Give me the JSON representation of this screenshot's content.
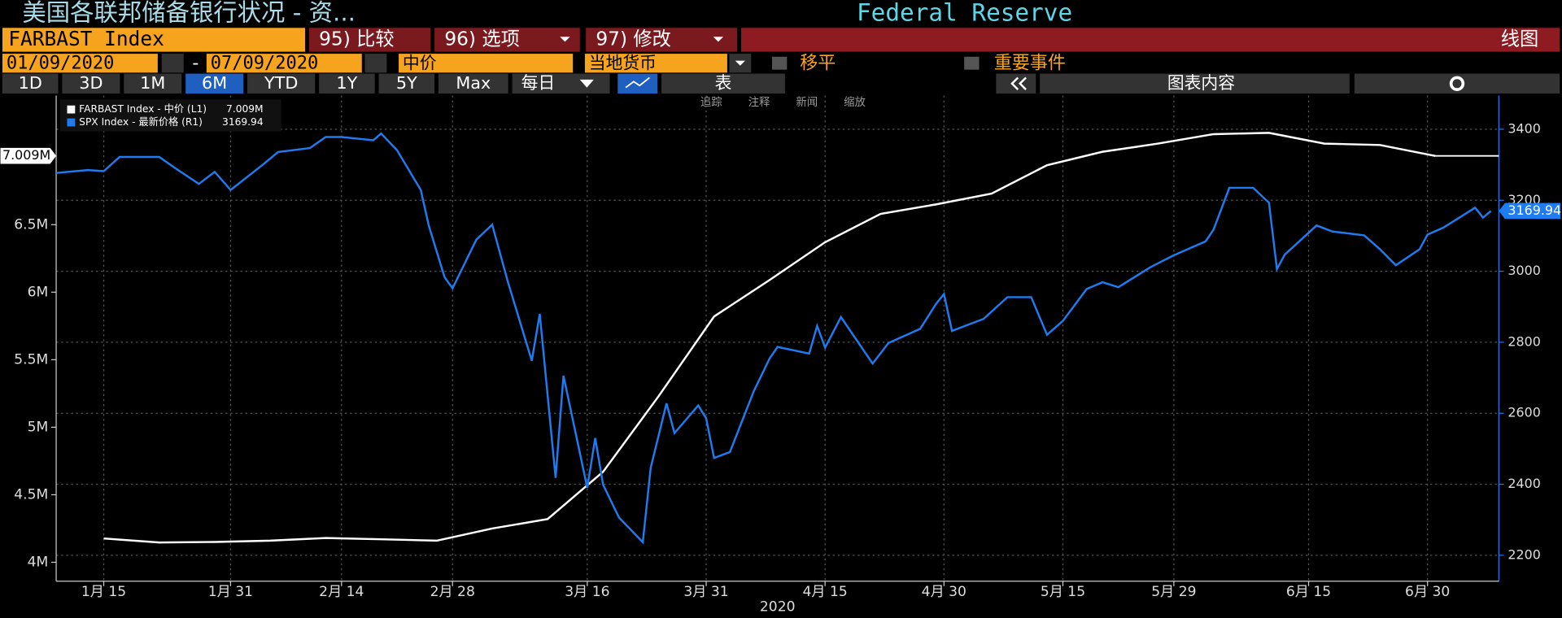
{
  "ui": {
    "title": "美国各联邦储备银行状况 - 资...",
    "source": "Federal Reserve",
    "ticker": "FARBAST Index",
    "compare": "95) 比较",
    "options": "96) 选项",
    "modify": "97) 修改",
    "chart_kind": "线图",
    "start_date": "01/09/2020",
    "date_sep": "-",
    "end_date": "07/09/2020",
    "price_type": "中价",
    "currency": "当地货币",
    "smooth": "移平",
    "events": "重要事件",
    "ranges": [
      "1D",
      "3D",
      "1M",
      "6M",
      "YTD",
      "1Y",
      "5Y",
      "Max"
    ],
    "frequency": "每日",
    "table": "表",
    "chart_content": "图表内容",
    "tools": [
      "追踪",
      "注释",
      "新闻",
      "缩放"
    ]
  },
  "chart_data": {
    "type": "line",
    "xlabel": "2020",
    "xlim": [
      "2020-01-09",
      "2020-07-09"
    ],
    "xticks": [
      {
        "value": "2020-01-15",
        "label": "1月 15"
      },
      {
        "value": "2020-01-31",
        "label": "1月 31"
      },
      {
        "value": "2020-02-14",
        "label": "2月 14"
      },
      {
        "value": "2020-02-28",
        "label": "2月 28"
      },
      {
        "value": "2020-03-16",
        "label": "3月 16"
      },
      {
        "value": "2020-03-31",
        "label": "3月 31"
      },
      {
        "value": "2020-04-15",
        "label": "4月 15"
      },
      {
        "value": "2020-04-30",
        "label": "4月 30"
      },
      {
        "value": "2020-05-15",
        "label": "5月 15"
      },
      {
        "value": "2020-05-29",
        "label": "5月 29"
      },
      {
        "value": "2020-06-15",
        "label": "6月 15"
      },
      {
        "value": "2020-06-30",
        "label": "6月 30"
      }
    ],
    "ylim": [
      3.86,
      7.456
    ],
    "yticks": [
      {
        "value": 4,
        "label": "4M"
      },
      {
        "value": 4.5,
        "label": "4.5M"
      },
      {
        "value": 5,
        "label": "5M"
      },
      {
        "value": 5.5,
        "label": "5.5M"
      },
      {
        "value": 6,
        "label": "6M"
      },
      {
        "value": 6.5,
        "label": "6.5M"
      }
    ],
    "y2lim": [
      2127,
      3495
    ],
    "y2ticks": [
      2200,
      2400,
      2600,
      2800,
      3000,
      3200,
      3400
    ],
    "grid": true,
    "series": [
      {
        "name": "FARBAST Index - 中价 (L1)",
        "color": "#ffffff",
        "axis": "y",
        "x": [
          "2020-01-15",
          "2020-01-22",
          "2020-01-29",
          "2020-02-05",
          "2020-02-12",
          "2020-02-19",
          "2020-02-26",
          "2020-03-04",
          "2020-03-11",
          "2020-03-18",
          "2020-03-25",
          "2020-04-01",
          "2020-04-08",
          "2020-04-15",
          "2020-04-22",
          "2020-04-29",
          "2020-05-06",
          "2020-05-13",
          "2020-05-20",
          "2020-05-27",
          "2020-06-03",
          "2020-06-10",
          "2020-06-17",
          "2020-06-24",
          "2020-07-01"
        ],
        "values": [
          4.176,
          4.147,
          4.15,
          4.16,
          4.18,
          4.17,
          4.16,
          4.25,
          4.32,
          4.67,
          5.23,
          5.82,
          6.09,
          6.37,
          6.58,
          6.65,
          6.73,
          6.94,
          7.04,
          7.1,
          7.17,
          7.18,
          7.1,
          7.09,
          7.009
        ],
        "value_labels": [
          null,
          null,
          null,
          null,
          null,
          null,
          null,
          null,
          null,
          null,
          null,
          null,
          null,
          null,
          null,
          null,
          null,
          null,
          null,
          null,
          null,
          null,
          null,
          null,
          "7.009M"
        ]
      },
      {
        "name": "SPX Index - 最新价格 (R1)",
        "color": "#1e7bf0",
        "axis": "y2",
        "x": [
          "2020-01-09",
          "2020-01-13",
          "2020-01-15",
          "2020-01-17",
          "2020-01-22",
          "2020-01-24",
          "2020-01-27",
          "2020-01-29",
          "2020-01-31",
          "2020-02-04",
          "2020-02-06",
          "2020-02-10",
          "2020-02-12",
          "2020-02-14",
          "2020-02-18",
          "2020-02-19",
          "2020-02-21",
          "2020-02-24",
          "2020-02-25",
          "2020-02-27",
          "2020-02-28",
          "2020-03-02",
          "2020-03-04",
          "2020-03-06",
          "2020-03-09",
          "2020-03-10",
          "2020-03-12",
          "2020-03-13",
          "2020-03-16",
          "2020-03-17",
          "2020-03-18",
          "2020-03-20",
          "2020-03-23",
          "2020-03-24",
          "2020-03-26",
          "2020-03-27",
          "2020-03-30",
          "2020-03-31",
          "2020-04-01",
          "2020-04-03",
          "2020-04-06",
          "2020-04-08",
          "2020-04-09",
          "2020-04-13",
          "2020-04-14",
          "2020-04-15",
          "2020-04-17",
          "2020-04-21",
          "2020-04-23",
          "2020-04-27",
          "2020-04-29",
          "2020-04-30",
          "2020-05-01",
          "2020-05-05",
          "2020-05-08",
          "2020-05-11",
          "2020-05-13",
          "2020-05-15",
          "2020-05-18",
          "2020-05-20",
          "2020-05-22",
          "2020-05-26",
          "2020-05-28",
          "2020-05-29",
          "2020-06-02",
          "2020-06-03",
          "2020-06-05",
          "2020-06-08",
          "2020-06-10",
          "2020-06-11",
          "2020-06-12",
          "2020-06-16",
          "2020-06-18",
          "2020-06-22",
          "2020-06-24",
          "2020-06-26",
          "2020-06-29",
          "2020-06-30",
          "2020-07-02",
          "2020-07-06",
          "2020-07-07",
          "2020-07-08"
        ],
        "values": [
          3277,
          3285,
          3282,
          3322,
          3322,
          3291,
          3246,
          3280,
          3229,
          3299,
          3336,
          3347,
          3378,
          3378,
          3369,
          3388,
          3341,
          3229,
          3129,
          2983,
          2952,
          3089,
          3131,
          2969,
          2748,
          2880,
          2418,
          2706,
          2390,
          2530,
          2399,
          2306,
          2237,
          2446,
          2628,
          2544,
          2622,
          2586,
          2474,
          2491,
          2662,
          2754,
          2787,
          2768,
          2846,
          2785,
          2871,
          2740,
          2798,
          2838,
          2908,
          2936,
          2832,
          2866,
          2927,
          2927,
          2821,
          2860,
          2950,
          2969,
          2955,
          3011,
          3034,
          3045,
          3084,
          3117,
          3235,
          3235,
          3193,
          3006,
          3047,
          3129,
          3112,
          3101,
          3062,
          3017,
          3062,
          3103,
          3123,
          3179,
          3151,
          3169.94
        ]
      }
    ]
  }
}
